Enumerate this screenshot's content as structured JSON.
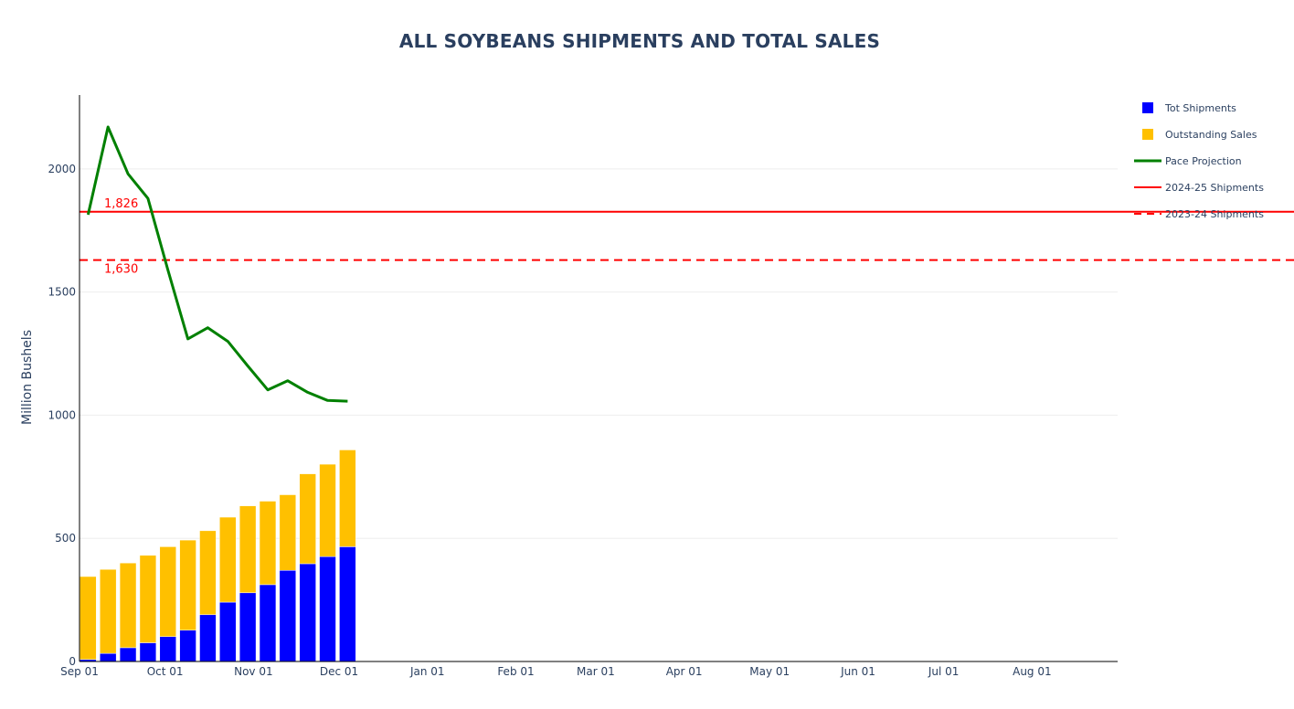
{
  "chart_data": {
    "type": "bar",
    "title": "ALL SOYBEANS SHIPMENTS AND TOTAL SALES",
    "ylabel": "Million Bushels",
    "xlabel": "",
    "ylim": [
      0,
      2300
    ],
    "yticks": [
      0,
      500,
      1000,
      1500,
      2000
    ],
    "ytick_labels": [
      "0",
      "500",
      "1000",
      "1500",
      "2000"
    ],
    "xrange": [
      "2025-09-01",
      "2026-08-31"
    ],
    "xticks": [
      "2025-09-01",
      "2025-10-01",
      "2025-11-01",
      "2025-12-01",
      "2026-01-01",
      "2026-02-01",
      "2026-03-01",
      "2026-04-01",
      "2026-05-01",
      "2026-06-01",
      "2026-07-01",
      "2026-08-01"
    ],
    "xtick_labels": [
      "Sep 01",
      "Oct 01",
      "Nov 01",
      "Dec 01",
      "Jan 01",
      "Feb 01",
      "Mar 01",
      "Apr 01",
      "May 01",
      "Jun 01",
      "Jul 01",
      "Aug 01"
    ],
    "barmode": "stack",
    "grid": true,
    "legend_position": "top-right",
    "x": [
      "2025-09-04",
      "2025-09-11",
      "2025-09-18",
      "2025-09-25",
      "2025-10-02",
      "2025-10-09",
      "2025-10-16",
      "2025-10-23",
      "2025-10-30",
      "2025-11-06",
      "2025-11-13",
      "2025-11-20",
      "2025-11-27",
      "2025-12-04"
    ],
    "series": [
      {
        "name": "Tot Shipments",
        "type": "bar",
        "color": "#0000ff",
        "values": [
          8,
          33,
          56,
          76,
          101,
          127,
          190,
          241,
          279,
          312,
          370,
          397,
          426,
          466
        ]
      },
      {
        "name": "Outstanding Sales",
        "type": "bar",
        "color": "#ffc000",
        "values": [
          337,
          341,
          344,
          355,
          365,
          366,
          341,
          345,
          353,
          339,
          307,
          365,
          375,
          393
        ]
      },
      {
        "name": "Pace Projection",
        "type": "line",
        "color": "#008000",
        "x": [
          "2025-09-04",
          "2025-09-11",
          "2025-09-18",
          "2025-09-25",
          "2025-10-02",
          "2025-10-09",
          "2025-10-16",
          "2025-10-23",
          "2025-10-30",
          "2025-11-06",
          "2025-11-13",
          "2025-11-20",
          "2025-11-27",
          "2025-12-04"
        ],
        "values": [
          1814,
          2170,
          1980,
          1880,
          1590,
          1310,
          1355,
          1300,
          1200,
          1103,
          1140,
          1093,
          1060,
          1057
        ]
      },
      {
        "name": "2024-25 Shipments",
        "type": "hline",
        "color": "#ff0000",
        "dash": "solid",
        "value": 1826
      },
      {
        "name": "2023-24 Shipments",
        "type": "hline",
        "color": "#ff0000",
        "dash": "dash",
        "value": 1630
      }
    ],
    "annotations": [
      {
        "text": "1,826",
        "value": 1826,
        "color": "#ff0000"
      },
      {
        "text": "1,630",
        "value": 1630,
        "color": "#ff0000"
      }
    ]
  }
}
